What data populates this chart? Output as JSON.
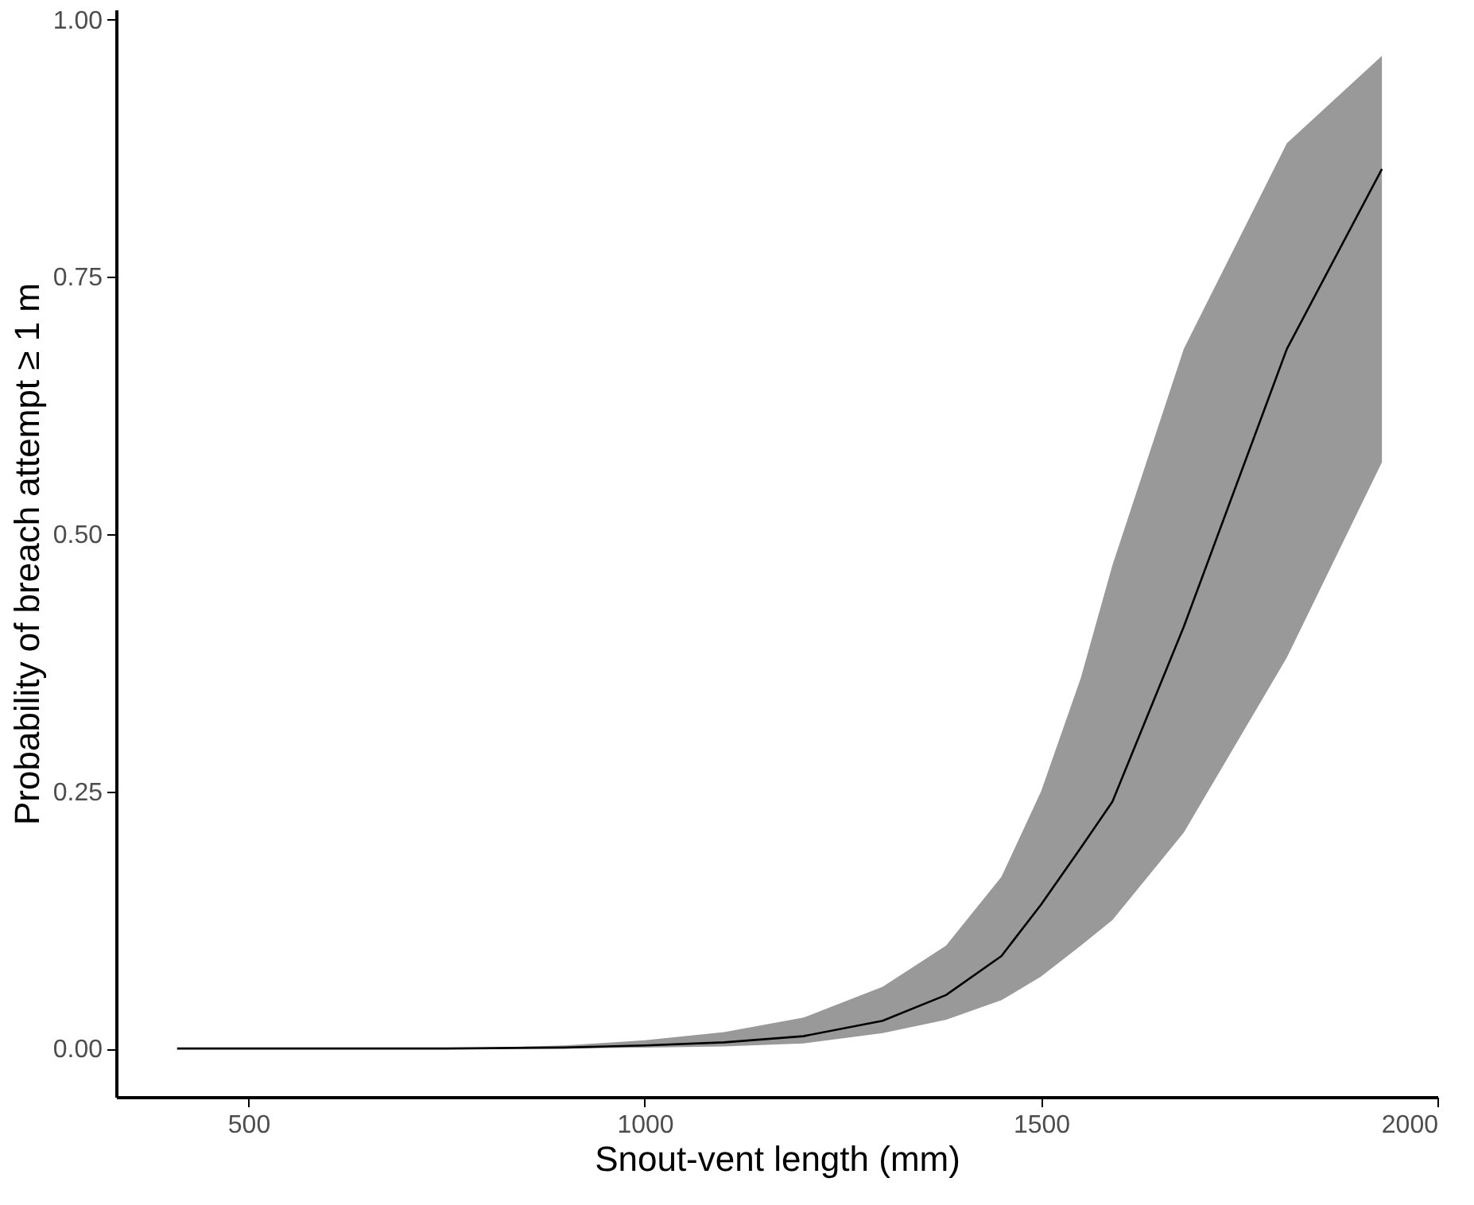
{
  "chart_data": {
    "type": "line",
    "xlabel": "Snout-vent length (mm)",
    "ylabel": "Probability of breach attempt ≥ 1 m",
    "xlim": [
      333,
      2000
    ],
    "ylim": [
      -0.047,
      1.01
    ],
    "xticks": [
      500,
      1000,
      1500,
      2000
    ],
    "yticks": [
      {
        "value": 0,
        "label": "0.00"
      },
      {
        "value": 0.25,
        "label": "0.25"
      },
      {
        "value": 0.5,
        "label": "0.50"
      },
      {
        "value": 0.75,
        "label": "0.75"
      },
      {
        "value": 1,
        "label": "1.00"
      }
    ],
    "grid": false,
    "x": [
      410,
      750,
      900,
      1000,
      1100,
      1200,
      1300,
      1380,
      1450,
      1500,
      1550,
      1590,
      1680,
      1810,
      1930
    ],
    "series": [
      {
        "color": "#000000",
        "values": [
          0,
          0,
          0.001,
          0.003,
          0.006,
          0.012,
          0.027,
          0.052,
          0.09,
          0.14,
          0.195,
          0.24,
          0.41,
          0.68,
          0.855
        ],
        "lower": [
          0,
          0,
          0,
          0.001,
          0.002,
          0.005,
          0.015,
          0.028,
          0.047,
          0.07,
          0.1,
          0.125,
          0.21,
          0.38,
          0.57
        ],
        "upper": [
          0,
          0,
          0.003,
          0.008,
          0.016,
          0.03,
          0.06,
          0.1,
          0.167,
          0.25,
          0.36,
          0.47,
          0.68,
          0.88,
          0.965
        ]
      }
    ]
  }
}
